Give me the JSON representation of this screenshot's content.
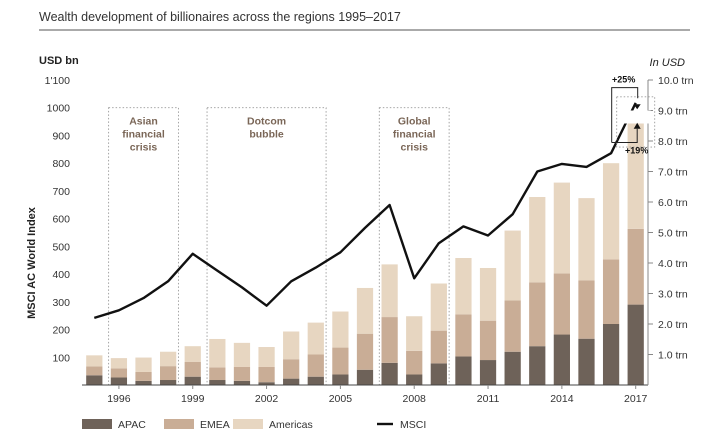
{
  "chart_data": {
    "type": "bar",
    "title": "Wealth development of billionaires across the regions 1995–2017",
    "ylabel_left": "USD bn",
    "ylabel_right": "In USD",
    "y2_title": "MSCI AC World Index",
    "ylim": [
      0,
      1100
    ],
    "y2lim": [
      0,
      10
    ],
    "y_ticks": [
      "100",
      "200",
      "300",
      "400",
      "500",
      "600",
      "700",
      "800",
      "900",
      "1000",
      "1'100"
    ],
    "y2_ticks": [
      "1.0 trn",
      "2.0 trn",
      "3.0 trn",
      "4.0 trn",
      "5.0 trn",
      "6.0 trn",
      "7.0 trn",
      "8.0 trn",
      "9.0 trn",
      "10.0 trn"
    ],
    "categories": [
      "1995",
      "1996",
      "1997",
      "1998",
      "1999",
      "2000",
      "2001",
      "2002",
      "2003",
      "2004",
      "2005",
      "2006",
      "2007",
      "2008",
      "2009",
      "2010",
      "2011",
      "2012",
      "2013",
      "2014",
      "2015",
      "2016",
      "2017"
    ],
    "x_tick_labels": [
      {
        "index": 1,
        "label": "1996"
      },
      {
        "index": 4,
        "label": "1999"
      },
      {
        "index": 7,
        "label": "2002"
      },
      {
        "index": 10,
        "label": "2005"
      },
      {
        "index": 13,
        "label": "2008"
      },
      {
        "index": 16,
        "label": "2011"
      },
      {
        "index": 19,
        "label": "2014"
      },
      {
        "index": 22,
        "label": "2017"
      }
    ],
    "series": [
      {
        "name": "APAC",
        "color": "#6e6259",
        "values": [
          35,
          27,
          15,
          18,
          30,
          18,
          15,
          10,
          23,
          30,
          38,
          55,
          80,
          38,
          78,
          103,
          90,
          120,
          140,
          182,
          167,
          220,
          290
        ]
      },
      {
        "name": "EMEA",
        "color": "#c9ad96",
        "values": [
          32,
          33,
          32,
          50,
          53,
          45,
          50,
          55,
          70,
          80,
          97,
          130,
          165,
          85,
          118,
          152,
          142,
          185,
          230,
          220,
          210,
          233,
          273
        ]
      },
      {
        "name": "Americas",
        "color": "#e7d6c1",
        "values": [
          40,
          37,
          52,
          52,
          57,
          103,
          87,
          72,
          100,
          115,
          130,
          165,
          190,
          125,
          170,
          203,
          190,
          252,
          308,
          328,
          297,
          347,
          390
        ]
      }
    ],
    "msci": {
      "name": "MSCI",
      "color": "#111111",
      "values": [
        2.2,
        2.45,
        2.85,
        3.4,
        4.3,
        3.75,
        3.2,
        2.6,
        3.4,
        3.85,
        4.35,
        5.15,
        5.9,
        3.5,
        4.65,
        5.2,
        4.9,
        5.6,
        7.0,
        7.25,
        7.15,
        7.6,
        9.25
      ]
    },
    "crisis_periods": [
      {
        "label": "Asian financial crisis",
        "lines": [
          "Asian",
          "financial",
          "crisis"
        ],
        "start": "1996",
        "end": "1998"
      },
      {
        "label": "Dotcom bubble",
        "lines": [
          "Dotcom",
          "bubble"
        ],
        "start": "2000",
        "end": "2004"
      },
      {
        "label": "Global financial crisis",
        "lines": [
          "Global",
          "financial",
          "crisis"
        ],
        "start": "2007",
        "end": "2009"
      }
    ],
    "annotations": [
      {
        "text": "+25%",
        "target": "MSCI"
      },
      {
        "text": "+19%",
        "target": "billionaire wealth"
      }
    ],
    "legend_placement": "bottom",
    "grid": false
  }
}
